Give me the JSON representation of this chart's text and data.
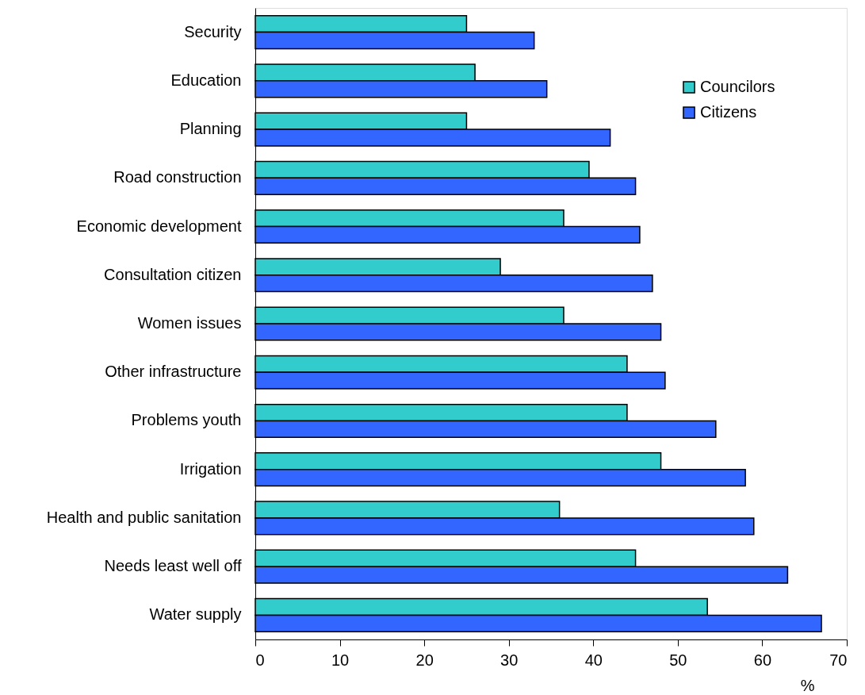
{
  "chart_data": {
    "type": "bar",
    "orientation": "horizontal",
    "xlabel": "%",
    "categories": [
      "Security",
      "Education",
      "Planning",
      "Road construction",
      "Economic development",
      "Consultation citizen",
      "Women issues",
      "Other infrastructure",
      "Problems youth",
      "Irrigation",
      "Health and public sanitation",
      "Needs least well off",
      "Water supply"
    ],
    "series": [
      {
        "name": "Councilors",
        "color": "#33cccc",
        "values": [
          25,
          26,
          25,
          39.5,
          36.5,
          29,
          36.5,
          44,
          44,
          48,
          36,
          45,
          53.5
        ]
      },
      {
        "name": "Citizens",
        "color": "#3366ff",
        "values": [
          33,
          34.5,
          42,
          45,
          45.5,
          47,
          48,
          48.5,
          54.5,
          58,
          59,
          63,
          67
        ]
      }
    ],
    "xlim": [
      0,
      70
    ],
    "xticks": [
      0,
      10,
      20,
      30,
      40,
      50,
      60,
      70
    ],
    "grid": false,
    "legend": "top right"
  }
}
